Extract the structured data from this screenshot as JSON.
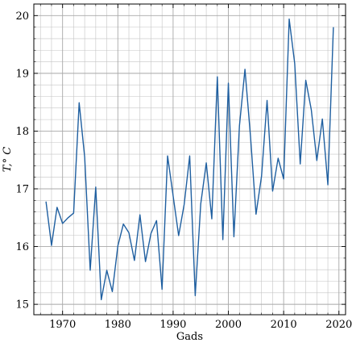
{
  "chart_data": {
    "type": "line",
    "title": "",
    "xlabel": "Gads",
    "ylabel": "T,° C",
    "xlim": [
      1964.8,
      2021.2
    ],
    "ylim": [
      14.82,
      20.2
    ],
    "grid": true,
    "minor_grid": true,
    "line_color": "#1f5fa0",
    "x_ticks": [
      1970,
      1980,
      1990,
      2000,
      2010,
      2020
    ],
    "y_ticks": [
      15,
      16,
      17,
      18,
      19,
      20
    ],
    "x_tick_labels": [
      "1970",
      "1980",
      "1990",
      "2000",
      "2010",
      "2020"
    ],
    "y_tick_labels": [
      "15",
      "16",
      "17",
      "18",
      "19",
      "20"
    ],
    "series": [
      {
        "x": [
          1967,
          1968,
          1969,
          1970,
          1971,
          1972,
          1973,
          1974,
          1975,
          1976,
          1977,
          1978,
          1979,
          1980,
          1981,
          1982,
          1983,
          1984,
          1985,
          1986,
          1987,
          1988,
          1989,
          1990,
          1991,
          1992,
          1993,
          1994,
          1995,
          1996,
          1997,
          1998,
          1999,
          2000,
          2001,
          2002,
          2003,
          2004,
          2005,
          2006,
          2007,
          2008,
          2009,
          2010,
          2011,
          2012,
          2013,
          2014,
          2015,
          2016,
          2017,
          2018,
          2019
        ],
        "y": [
          16.78,
          16.02,
          16.68,
          16.4,
          16.5,
          16.58,
          18.49,
          17.55,
          15.59,
          17.03,
          15.08,
          15.59,
          15.22,
          16.01,
          16.39,
          16.24,
          15.76,
          16.55,
          15.74,
          16.23,
          16.45,
          15.26,
          17.57,
          16.88,
          16.19,
          16.73,
          17.57,
          15.15,
          16.74,
          17.45,
          16.48,
          18.94,
          16.12,
          18.83,
          16.17,
          18.09,
          19.07,
          17.91,
          16.56,
          17.22,
          18.53,
          16.96,
          17.53,
          17.17,
          19.94,
          19.17,
          17.43,
          18.88,
          18.37,
          17.49,
          18.21,
          17.07,
          19.8
        ]
      }
    ]
  }
}
